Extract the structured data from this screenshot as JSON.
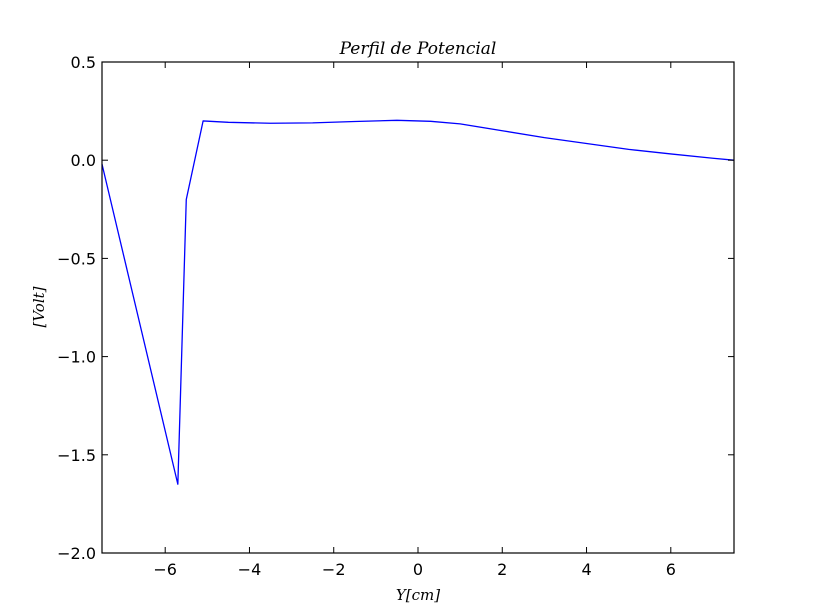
{
  "chart_data": {
    "type": "line",
    "title": "Perfil de Potencial",
    "xlabel": "Y[cm]",
    "ylabel": "[Volt]",
    "xlim": [
      -7.5,
      7.5
    ],
    "ylim": [
      -2.0,
      0.5
    ],
    "xticks": [
      -6,
      -4,
      -2,
      0,
      2,
      4,
      6
    ],
    "xtick_labels": [
      "−6",
      "−4",
      "−2",
      "0",
      "2",
      "4",
      "6"
    ],
    "yticks": [
      0.5,
      0.0,
      -0.5,
      -1.0,
      -1.5,
      -2.0
    ],
    "ytick_labels": [
      "0.5",
      "0.0",
      "−0.5",
      "−1.0",
      "−1.5",
      "−2.0"
    ],
    "grid": false,
    "series": [
      {
        "color": "#0000ff",
        "x": [
          -7.5,
          -5.7,
          -5.5,
          -5.1,
          -4.5,
          -3.5,
          -2.5,
          -1.5,
          -0.5,
          0.3,
          1.0,
          2.0,
          3.0,
          4.0,
          5.0,
          6.0,
          7.0,
          7.5
        ],
        "y": [
          -0.02,
          -1.65,
          -0.2,
          0.2,
          0.193,
          0.188,
          0.19,
          0.197,
          0.203,
          0.198,
          0.185,
          0.15,
          0.115,
          0.085,
          0.055,
          0.032,
          0.01,
          0.0
        ]
      }
    ]
  }
}
